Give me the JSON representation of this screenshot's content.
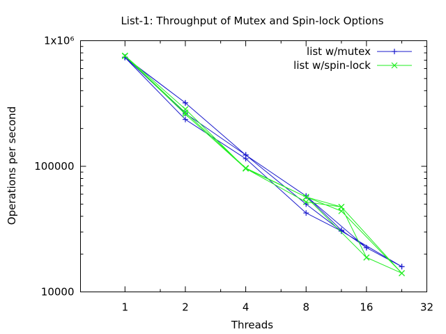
{
  "chart_data": {
    "type": "line",
    "title": "List-1: Throughput of Mutex and Spin-lock Options",
    "xlabel": "Threads",
    "ylabel": "Operations per second",
    "xscale": "log2",
    "yscale": "log10",
    "xlim": [
      0.6,
      32
    ],
    "ylim": [
      10000,
      1000000
    ],
    "xticks": [
      {
        "value": 1,
        "label": "1"
      },
      {
        "value": 2,
        "label": "2"
      },
      {
        "value": 4,
        "label": "4"
      },
      {
        "value": 8,
        "label": "8"
      },
      {
        "value": 16,
        "label": "16"
      },
      {
        "value": 32,
        "label": "32"
      }
    ],
    "yticks": [
      {
        "value": 10000,
        "label": "10000"
      },
      {
        "value": 100000,
        "label": "100000"
      },
      {
        "value": 1000000,
        "label": "1x10⁶"
      }
    ],
    "grid": false,
    "legend_position": "top-right",
    "series": [
      {
        "name": "list w/mutex",
        "color": "#1a1acc",
        "marker": "plus",
        "x": [
          1,
          2,
          4,
          8,
          12,
          24,
          12,
          8,
          4,
          2,
          1,
          2,
          4,
          8,
          12,
          16,
          24,
          16,
          8,
          4,
          2,
          1
        ],
        "y": [
          735000,
          236000,
          115000,
          42500,
          30500,
          15900,
          30500,
          50000,
          123000,
          320000,
          740000,
          264000,
          123000,
          58000,
          31000,
          22500,
          15900,
          22500,
          58000,
          123000,
          320000,
          735000
        ]
      },
      {
        "name": "list w/spin-lock",
        "color": "#22ee22",
        "marker": "cross",
        "x": [
          1,
          2,
          4,
          8,
          12,
          24,
          12,
          8,
          4,
          2,
          1,
          2,
          4,
          8,
          12,
          16,
          24,
          16,
          8,
          4,
          2,
          1
        ],
        "y": [
          760000,
          285000,
          96000,
          52000,
          47500,
          14100,
          44000,
          57000,
          97000,
          268000,
          755000,
          260000,
          96000,
          57000,
          47500,
          18800,
          14100,
          18800,
          57000,
          96000,
          285000,
          760000
        ]
      }
    ]
  }
}
